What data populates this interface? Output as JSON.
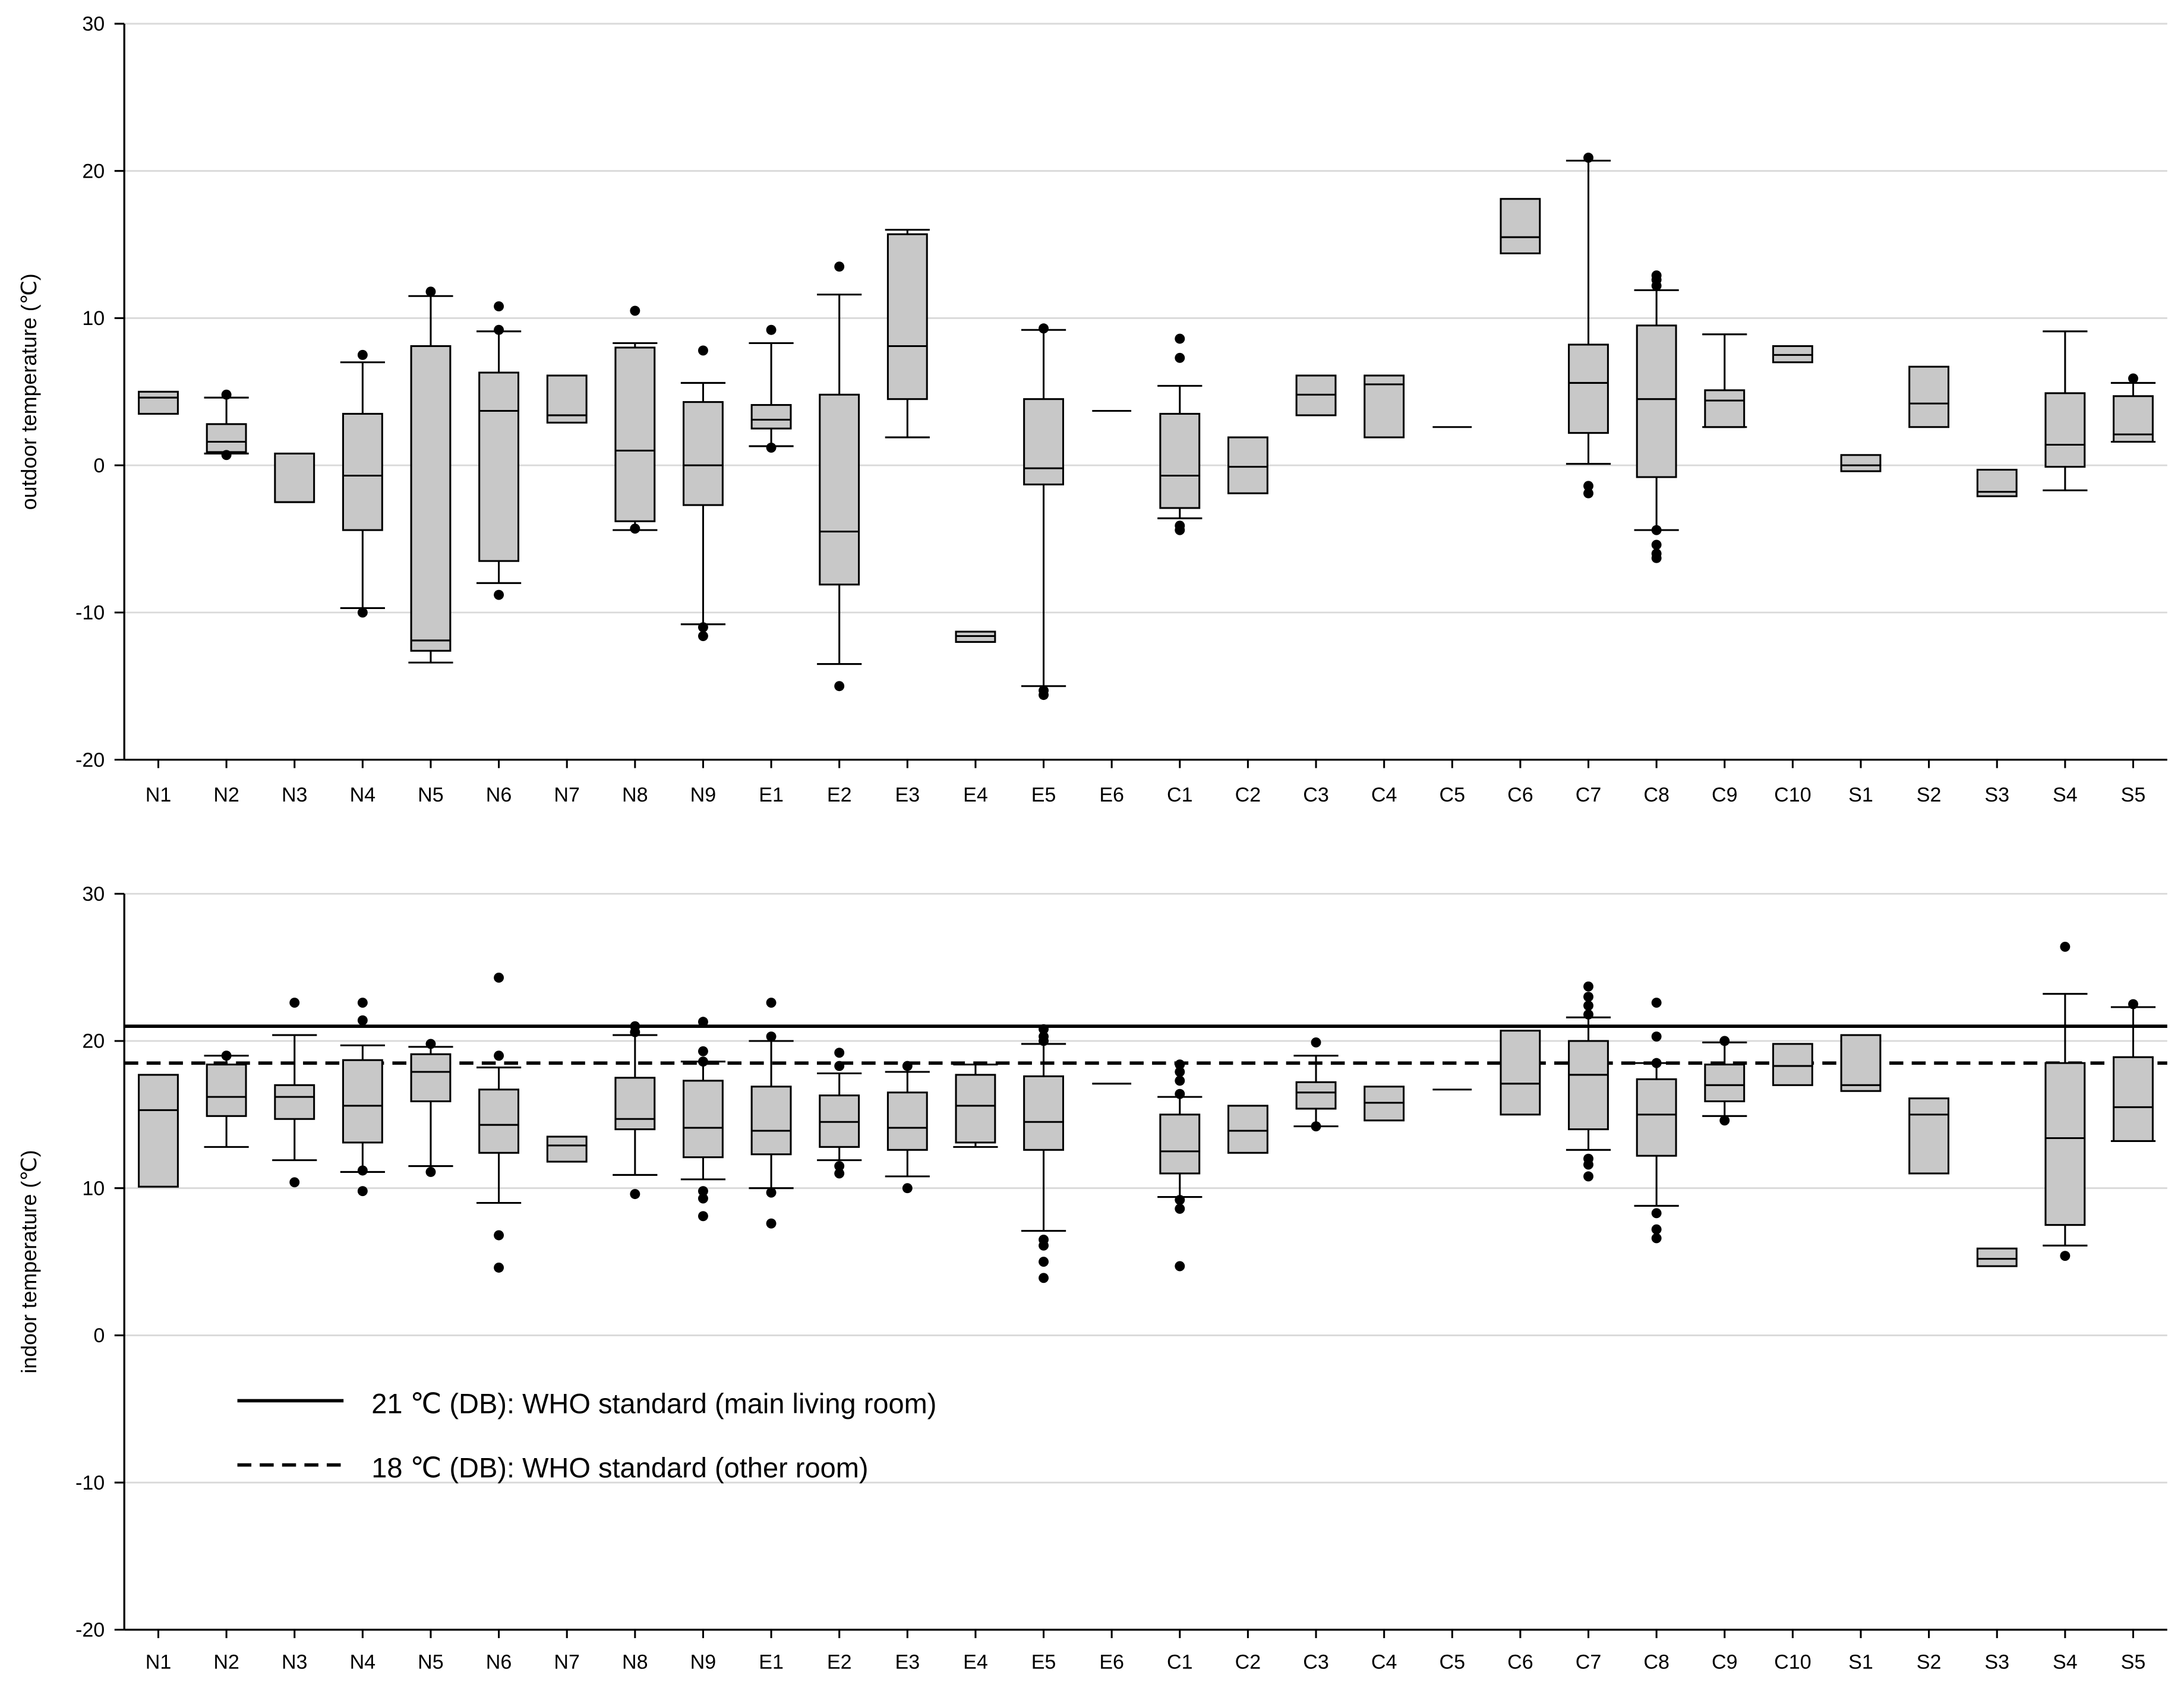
{
  "chart_data": [
    {
      "type": "box",
      "ylabel": "outdoor temperature (℃)",
      "ylim": [
        -20,
        30
      ],
      "yticks": [
        -20,
        -10,
        0,
        10,
        20,
        30
      ],
      "grid": true,
      "categories": [
        "N1",
        "N2",
        "N3",
        "N4",
        "N5",
        "N6",
        "N7",
        "N8",
        "N9",
        "E1",
        "E2",
        "E3",
        "E4",
        "E5",
        "E6",
        "C1",
        "C2",
        "C3",
        "C4",
        "C5",
        "C6",
        "C7",
        "C8",
        "C9",
        "C10",
        "S1",
        "S2",
        "S3",
        "S4",
        "S5"
      ],
      "boxes": [
        {
          "cat": "N1",
          "q1": 3.5,
          "median": 4.6,
          "q3": 5.0,
          "outliers": []
        },
        {
          "cat": "N2",
          "q1": 0.9,
          "median": 1.6,
          "q3": 2.8,
          "whisker_low": 0.8,
          "whisker_high": 4.6,
          "outliers": [
            0.7,
            4.8
          ]
        },
        {
          "cat": "N3",
          "q1": -2.5,
          "median": -2.5,
          "q3": 0.8,
          "outliers": []
        },
        {
          "cat": "N4",
          "q1": -4.4,
          "median": -0.7,
          "q3": 3.5,
          "whisker_low": -9.7,
          "whisker_high": 7.0,
          "outliers": [
            -10.0,
            7.5
          ]
        },
        {
          "cat": "N5",
          "q1": -12.6,
          "median": -11.9,
          "q3": 8.1,
          "whisker_low": -13.4,
          "whisker_high": 11.5,
          "outliers": [
            11.8
          ]
        },
        {
          "cat": "N6",
          "q1": -6.5,
          "median": 3.7,
          "q3": 6.3,
          "whisker_low": -8.0,
          "whisker_high": 9.1,
          "outliers": [
            -8.8,
            9.2,
            10.8
          ]
        },
        {
          "cat": "N7",
          "q1": 2.9,
          "median": 3.4,
          "q3": 6.1,
          "outliers": []
        },
        {
          "cat": "N8",
          "q1": -3.8,
          "median": 1.0,
          "q3": 8.0,
          "whisker_low": -4.4,
          "whisker_high": 8.3,
          "outliers": [
            -4.3,
            10.5
          ]
        },
        {
          "cat": "N9",
          "q1": -2.7,
          "median": 0.0,
          "q3": 4.3,
          "whisker_low": -10.8,
          "whisker_high": 5.6,
          "outliers": [
            -11.0,
            -11.6,
            7.8
          ]
        },
        {
          "cat": "E1",
          "q1": 2.5,
          "median": 3.1,
          "q3": 4.1,
          "whisker_low": 1.3,
          "whisker_high": 8.3,
          "outliers": [
            1.2,
            9.2
          ]
        },
        {
          "cat": "E2",
          "q1": -8.1,
          "median": -4.5,
          "q3": 4.8,
          "whisker_low": -13.5,
          "whisker_high": 11.6,
          "outliers": [
            -15.0,
            13.5
          ]
        },
        {
          "cat": "E3",
          "q1": 4.5,
          "median": 8.1,
          "q3": 15.7,
          "whisker_low": 1.9,
          "whisker_high": 16.0,
          "outliers": []
        },
        {
          "cat": "E4",
          "q1": -12.0,
          "median": -11.6,
          "q3": -11.3,
          "outliers": []
        },
        {
          "cat": "E5",
          "q1": -1.3,
          "median": -0.2,
          "q3": 4.5,
          "whisker_low": -15.0,
          "whisker_high": 9.2,
          "outliers": [
            -15.3,
            -15.6,
            9.3
          ]
        },
        {
          "cat": "E6",
          "q1": 3.7,
          "median": 3.7,
          "q3": 3.7,
          "outliers": []
        },
        {
          "cat": "C1",
          "q1": -2.9,
          "median": -0.7,
          "q3": 3.5,
          "whisker_low": -3.6,
          "whisker_high": 5.4,
          "outliers": [
            -4.1,
            -4.4,
            7.3,
            8.6
          ]
        },
        {
          "cat": "C2",
          "q1": -1.9,
          "median": -0.1,
          "q3": 1.9,
          "outliers": []
        },
        {
          "cat": "C3",
          "q1": 3.4,
          "median": 4.8,
          "q3": 6.1,
          "outliers": []
        },
        {
          "cat": "C4",
          "q1": 1.9,
          "median": 5.5,
          "q3": 6.1,
          "outliers": []
        },
        {
          "cat": "C5",
          "q1": 2.6,
          "median": 2.6,
          "q3": 2.6,
          "outliers": []
        },
        {
          "cat": "C6",
          "q1": 14.4,
          "median": 15.5,
          "q3": 18.1,
          "outliers": []
        },
        {
          "cat": "C7",
          "q1": 2.2,
          "median": 5.6,
          "q3": 8.2,
          "whisker_low": 0.1,
          "whisker_high": 20.7,
          "outliers": [
            -1.4,
            -1.9,
            20.9
          ]
        },
        {
          "cat": "C8",
          "q1": -0.8,
          "median": 4.5,
          "q3": 9.5,
          "whisker_low": -4.4,
          "whisker_high": 11.9,
          "outliers": [
            -4.4,
            -5.4,
            -6.0,
            -6.3,
            12.2,
            12.6,
            12.9
          ]
        },
        {
          "cat": "C9",
          "q1": 2.6,
          "median": 4.4,
          "q3": 5.1,
          "whisker_low": 2.6,
          "whisker_high": 8.9,
          "outliers": []
        },
        {
          "cat": "C10",
          "q1": 7.0,
          "median": 7.5,
          "q3": 8.1,
          "outliers": []
        },
        {
          "cat": "S1",
          "q1": -0.4,
          "median": 0.0,
          "q3": 0.7,
          "outliers": []
        },
        {
          "cat": "S2",
          "q1": 2.6,
          "median": 4.2,
          "q3": 6.7,
          "outliers": []
        },
        {
          "cat": "S3",
          "q1": -2.1,
          "median": -1.8,
          "q3": -0.3,
          "outliers": []
        },
        {
          "cat": "S4",
          "q1": -0.1,
          "median": 1.4,
          "q3": 4.9,
          "whisker_low": -1.7,
          "whisker_high": 9.1,
          "outliers": []
        },
        {
          "cat": "S5",
          "q1": 1.6,
          "median": 2.1,
          "q3": 4.7,
          "whisker_low": 1.6,
          "whisker_high": 5.6,
          "outliers": [
            5.9
          ]
        }
      ]
    },
    {
      "type": "box",
      "ylabel": "indoor temperature (℃)",
      "ylim": [
        -20,
        30
      ],
      "yticks": [
        -20,
        -10,
        0,
        10,
        20,
        30
      ],
      "grid": true,
      "categories": [
        "N1",
        "N2",
        "N3",
        "N4",
        "N5",
        "N6",
        "N7",
        "N8",
        "N9",
        "E1",
        "E2",
        "E3",
        "E4",
        "E5",
        "E6",
        "C1",
        "C2",
        "C3",
        "C4",
        "C5",
        "C6",
        "C7",
        "C8",
        "C9",
        "C10",
        "S1",
        "S2",
        "S3",
        "S4",
        "S5"
      ],
      "reference_lines": [
        {
          "value": 21,
          "style": "solid",
          "label": "21 ℃ (DB): WHO standard (main living room)"
        },
        {
          "value": 18.5,
          "style": "dashed",
          "label": "18 ℃ (DB): WHO standard (other room)"
        }
      ],
      "legend_position": "lower-left",
      "boxes": [
        {
          "cat": "N1",
          "q1": 10.1,
          "median": 15.3,
          "q3": 17.7,
          "outliers": []
        },
        {
          "cat": "N2",
          "q1": 14.9,
          "median": 16.2,
          "q3": 18.4,
          "whisker_low": 12.8,
          "whisker_high": 19.0,
          "outliers": [
            19.0
          ]
        },
        {
          "cat": "N3",
          "q1": 14.7,
          "median": 16.2,
          "q3": 17.0,
          "whisker_low": 11.9,
          "whisker_high": 20.4,
          "outliers": [
            10.4,
            22.6
          ]
        },
        {
          "cat": "N4",
          "q1": 13.1,
          "median": 15.6,
          "q3": 18.7,
          "whisker_low": 11.1,
          "whisker_high": 19.7,
          "outliers": [
            9.8,
            11.2,
            21.4,
            22.6
          ]
        },
        {
          "cat": "N5",
          "q1": 15.9,
          "median": 17.9,
          "q3": 19.1,
          "whisker_low": 11.5,
          "whisker_high": 19.6,
          "outliers": [
            11.1,
            19.8
          ]
        },
        {
          "cat": "N6",
          "q1": 12.4,
          "median": 14.3,
          "q3": 16.7,
          "whisker_low": 9.0,
          "whisker_high": 18.2,
          "outliers": [
            4.6,
            6.8,
            19.0,
            24.3
          ]
        },
        {
          "cat": "N7",
          "q1": 11.8,
          "median": 12.9,
          "q3": 13.5,
          "outliers": []
        },
        {
          "cat": "N8",
          "q1": 14.0,
          "median": 14.7,
          "q3": 17.5,
          "whisker_low": 10.9,
          "whisker_high": 20.4,
          "outliers": [
            9.6,
            20.6,
            21.0
          ]
        },
        {
          "cat": "N9",
          "q1": 12.1,
          "median": 14.1,
          "q3": 17.3,
          "whisker_low": 10.6,
          "whisker_high": 18.6,
          "outliers": [
            8.1,
            9.3,
            9.8,
            18.6,
            19.3,
            21.3
          ]
        },
        {
          "cat": "E1",
          "q1": 12.3,
          "median": 13.9,
          "q3": 16.9,
          "whisker_low": 10.0,
          "whisker_high": 20.0,
          "outliers": [
            7.6,
            9.7,
            20.3,
            22.6
          ]
        },
        {
          "cat": "E2",
          "q1": 12.8,
          "median": 14.5,
          "q3": 16.3,
          "whisker_low": 11.9,
          "whisker_high": 17.8,
          "outliers": [
            11.0,
            11.5,
            18.3,
            19.2
          ]
        },
        {
          "cat": "E3",
          "q1": 12.6,
          "median": 14.1,
          "q3": 16.5,
          "whisker_low": 10.8,
          "whisker_high": 17.9,
          "outliers": [
            10.0,
            18.3
          ]
        },
        {
          "cat": "E4",
          "q1": 13.1,
          "median": 15.6,
          "q3": 17.7,
          "whisker_low": 12.8,
          "whisker_high": 18.4,
          "outliers": []
        },
        {
          "cat": "E5",
          "q1": 12.6,
          "median": 14.5,
          "q3": 17.6,
          "whisker_low": 7.1,
          "whisker_high": 19.8,
          "outliers": [
            3.9,
            5.0,
            6.1,
            6.5,
            20.0,
            20.3,
            20.8
          ]
        },
        {
          "cat": "E6",
          "q1": 17.1,
          "median": 17.1,
          "q3": 17.1,
          "outliers": []
        },
        {
          "cat": "C1",
          "q1": 11.0,
          "median": 12.5,
          "q3": 15.0,
          "whisker_low": 9.4,
          "whisker_high": 16.2,
          "outliers": [
            4.7,
            8.6,
            9.2,
            16.4,
            17.3,
            17.9,
            18.4
          ]
        },
        {
          "cat": "C2",
          "q1": 12.4,
          "median": 13.9,
          "q3": 15.6,
          "outliers": []
        },
        {
          "cat": "C3",
          "q1": 15.4,
          "median": 16.5,
          "q3": 17.2,
          "whisker_low": 14.2,
          "whisker_high": 19.0,
          "outliers": [
            14.2,
            19.9
          ]
        },
        {
          "cat": "C4",
          "q1": 14.6,
          "median": 15.8,
          "q3": 16.9,
          "outliers": []
        },
        {
          "cat": "C5",
          "q1": 16.7,
          "median": 16.7,
          "q3": 16.7,
          "outliers": []
        },
        {
          "cat": "C6",
          "q1": 15.0,
          "median": 17.1,
          "q3": 20.7,
          "outliers": []
        },
        {
          "cat": "C7",
          "q1": 14.0,
          "median": 17.7,
          "q3": 20.0,
          "whisker_low": 12.6,
          "whisker_high": 21.6,
          "outliers": [
            10.8,
            11.6,
            12.0,
            21.8,
            22.4,
            23.0,
            23.7
          ]
        },
        {
          "cat": "C8",
          "q1": 12.2,
          "median": 15.0,
          "q3": 17.4,
          "whisker_low": 8.8,
          "whisker_high": 18.5,
          "outliers": [
            6.6,
            7.2,
            8.3,
            18.5,
            20.3,
            22.6
          ]
        },
        {
          "cat": "C9",
          "q1": 15.9,
          "median": 17.0,
          "q3": 18.4,
          "whisker_low": 14.9,
          "whisker_high": 19.9,
          "outliers": [
            14.6,
            20.0
          ]
        },
        {
          "cat": "C10",
          "q1": 17.0,
          "median": 18.3,
          "q3": 19.8,
          "outliers": []
        },
        {
          "cat": "S1",
          "q1": 16.6,
          "median": 17.0,
          "q3": 20.4,
          "outliers": []
        },
        {
          "cat": "S2",
          "q1": 11.0,
          "median": 15.0,
          "q3": 16.1,
          "outliers": []
        },
        {
          "cat": "S3",
          "q1": 4.7,
          "median": 5.2,
          "q3": 5.9,
          "outliers": []
        },
        {
          "cat": "S4",
          "q1": 7.5,
          "median": 13.4,
          "q3": 18.5,
          "whisker_low": 6.1,
          "whisker_high": 23.2,
          "outliers": [
            5.4,
            26.4
          ]
        },
        {
          "cat": "S5",
          "q1": 13.2,
          "median": 15.5,
          "q3": 18.9,
          "whisker_low": 13.2,
          "whisker_high": 22.3,
          "outliers": [
            22.5
          ]
        }
      ]
    }
  ]
}
